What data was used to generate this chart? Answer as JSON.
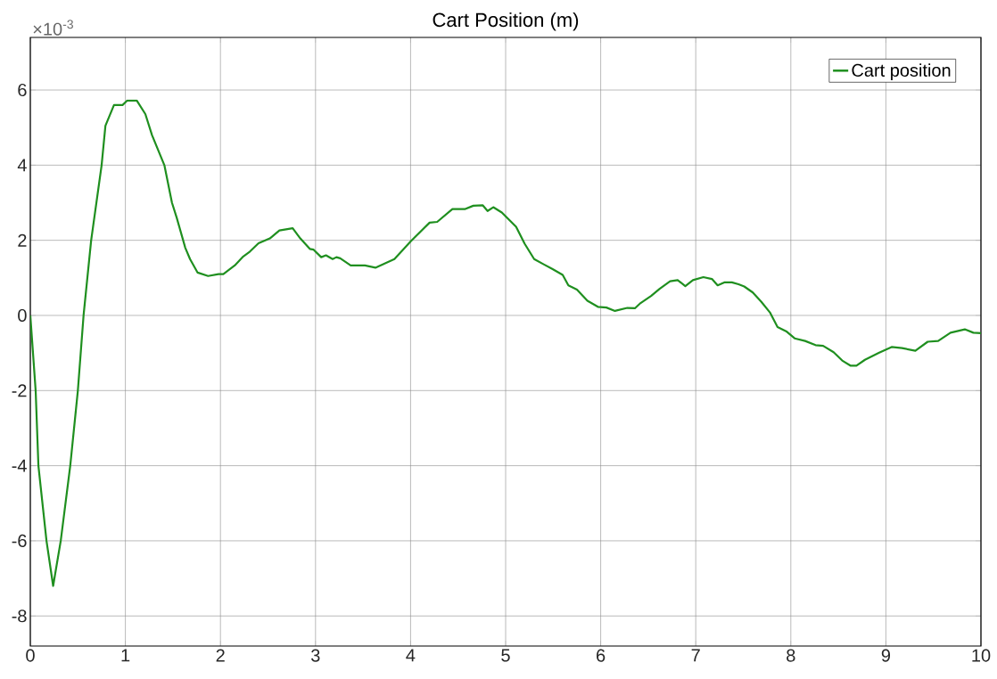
{
  "chart_data": {
    "type": "line",
    "title": "Cart Position (m)",
    "annotations": [
      "×10$^{-3}$"
    ],
    "xlim": [
      0,
      10
    ],
    "ylim": [
      -8.8,
      7.4
    ],
    "xticks": [
      0,
      1,
      2,
      3,
      4,
      5,
      6,
      7,
      8,
      9,
      10
    ],
    "yticks": [
      -8,
      -6,
      -4,
      -2,
      0,
      2,
      4,
      6
    ],
    "grid": true,
    "legend": "top right",
    "series": [
      {
        "name": "Cart position",
        "color": "#1f8f1f",
        "x": [
          0,
          0.056,
          0.085,
          0.17,
          0.24,
          0.32,
          0.42,
          0.5,
          0.56,
          0.64,
          0.75,
          0.79,
          0.88,
          0.97,
          1.02,
          1.12,
          1.21,
          1.28,
          1.41,
          1.49,
          1.54,
          1.63,
          1.68,
          1.76,
          1.87,
          1.98,
          2.03,
          2.15,
          2.24,
          2.31,
          2.4,
          2.52,
          2.62,
          2.76,
          2.84,
          2.94,
          2.98,
          3.06,
          3.11,
          3.18,
          3.22,
          3.26,
          3.37,
          3.52,
          3.63,
          3.83,
          4.0,
          4.2,
          4.28,
          4.44,
          4.57,
          4.66,
          4.76,
          4.81,
          4.87,
          4.96,
          5.11,
          5.2,
          5.3,
          5.4,
          5.49,
          5.6,
          5.66,
          5.75,
          5.86,
          5.97,
          6.06,
          6.15,
          6.28,
          6.36,
          6.42,
          6.53,
          6.62,
          6.73,
          6.81,
          6.89,
          6.97,
          7.08,
          7.17,
          7.23,
          7.3,
          7.38,
          7.45,
          7.51,
          7.6,
          7.69,
          7.78,
          7.86,
          7.95,
          8.04,
          8.15,
          8.26,
          8.34,
          8.45,
          8.54,
          8.63,
          8.69,
          8.78,
          8.93,
          9.06,
          9.17,
          9.31,
          9.44,
          9.55,
          9.68,
          9.83,
          9.92,
          10
        ],
        "values": [
          0,
          -2,
          -4,
          -6,
          -7.2,
          -6,
          -4,
          -2,
          0,
          2,
          4,
          5.05,
          5.6,
          5.6,
          5.72,
          5.72,
          5.36,
          4.8,
          4,
          3.0,
          2.6,
          1.8,
          1.5,
          1.14,
          1.05,
          1.1,
          1.1,
          1.33,
          1.57,
          1.7,
          1.92,
          2.05,
          2.26,
          2.32,
          2.05,
          1.77,
          1.75,
          1.55,
          1.6,
          1.5,
          1.55,
          1.52,
          1.33,
          1.33,
          1.27,
          1.5,
          1.97,
          2.47,
          2.49,
          2.83,
          2.83,
          2.92,
          2.93,
          2.78,
          2.88,
          2.74,
          2.36,
          1.91,
          1.5,
          1.36,
          1.24,
          1.08,
          0.8,
          0.69,
          0.39,
          0.23,
          0.21,
          0.12,
          0.2,
          0.19,
          0.33,
          0.52,
          0.71,
          0.91,
          0.94,
          0.78,
          0.94,
          1.02,
          0.97,
          0.8,
          0.88,
          0.88,
          0.83,
          0.77,
          0.61,
          0.36,
          0.08,
          -0.31,
          -0.42,
          -0.61,
          -0.68,
          -0.79,
          -0.81,
          -0.98,
          -1.2,
          -1.34,
          -1.34,
          -1.18,
          -0.99,
          -0.84,
          -0.87,
          -0.94,
          -0.7,
          -0.68,
          -0.46,
          -0.37,
          -0.46,
          -0.47
        ]
      }
    ]
  }
}
